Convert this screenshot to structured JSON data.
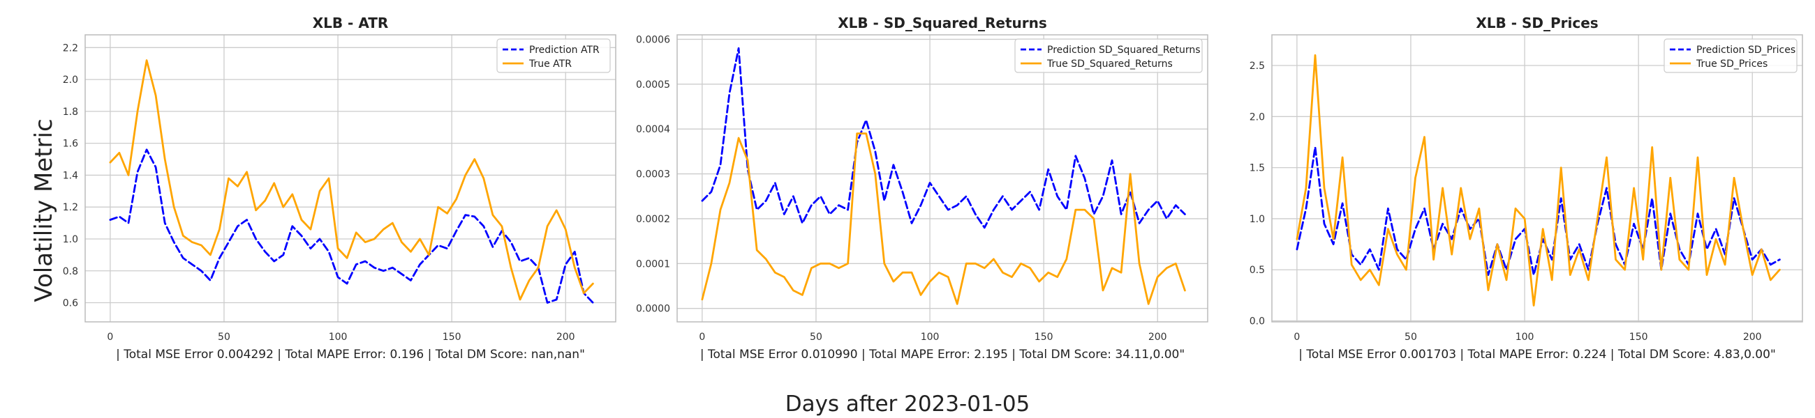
{
  "figure": {
    "ylabel": "Volatility Metric",
    "xlabel": "Days after 2023-01-05"
  },
  "colors": {
    "prediction": "#0000ff",
    "true": "#ffa500",
    "grid": "#cccccc",
    "frame": "#bbbbbb"
  },
  "chart_data": [
    {
      "type": "line",
      "title": "XLB - ATR",
      "xlabel": "| Total MSE Error 0.004292 | Total MAPE Error: 0.196 | Total DM Score: nan,nan\"",
      "ylabel": "Volatility Metric",
      "xlim": [
        -11,
        222
      ],
      "ylim": [
        0.48,
        2.28
      ],
      "xticks": [
        0,
        50,
        100,
        150,
        200
      ],
      "yticks": [
        0.6,
        0.8,
        1.0,
        1.2,
        1.4,
        1.6,
        1.8,
        2.0,
        2.2
      ],
      "ytick_labels": [
        "0.6",
        "0.8",
        "1.0",
        "1.2",
        "1.4",
        "1.6",
        "1.8",
        "2.0",
        "2.2"
      ],
      "grid": true,
      "legend_position": "top-right",
      "x_points": [
        0,
        4,
        8,
        12,
        16,
        20,
        24,
        28,
        32,
        36,
        40,
        44,
        48,
        52,
        56,
        60,
        64,
        68,
        72,
        76,
        80,
        84,
        88,
        92,
        96,
        100,
        104,
        108,
        112,
        116,
        120,
        124,
        128,
        132,
        136,
        140,
        144,
        148,
        152,
        156,
        160,
        164,
        168,
        172,
        176,
        180,
        184,
        188,
        192,
        196,
        200,
        204,
        208,
        212
      ],
      "series": [
        {
          "name": "Prediction ATR",
          "style": "dashed",
          "values": [
            1.12,
            1.14,
            1.1,
            1.42,
            1.56,
            1.45,
            1.1,
            0.98,
            0.88,
            0.84,
            0.8,
            0.74,
            0.88,
            0.98,
            1.08,
            1.12,
            1.0,
            0.92,
            0.86,
            0.9,
            1.08,
            1.02,
            0.94,
            1.0,
            0.92,
            0.76,
            0.72,
            0.84,
            0.86,
            0.82,
            0.8,
            0.82,
            0.78,
            0.74,
            0.84,
            0.9,
            0.96,
            0.94,
            1.05,
            1.15,
            1.14,
            1.08,
            0.95,
            1.05,
            0.98,
            0.86,
            0.88,
            0.82,
            0.6,
            0.62,
            0.84,
            0.92,
            0.66,
            0.6
          ]
        },
        {
          "name": "True ATR",
          "style": "solid",
          "values": [
            1.48,
            1.54,
            1.4,
            1.8,
            2.12,
            1.9,
            1.5,
            1.2,
            1.02,
            0.98,
            0.96,
            0.9,
            1.06,
            1.38,
            1.33,
            1.42,
            1.18,
            1.24,
            1.35,
            1.2,
            1.28,
            1.12,
            1.06,
            1.3,
            1.38,
            0.94,
            0.88,
            1.04,
            0.98,
            1.0,
            1.06,
            1.1,
            0.98,
            0.92,
            1.0,
            0.9,
            1.2,
            1.16,
            1.25,
            1.4,
            1.5,
            1.38,
            1.15,
            1.08,
            0.82,
            0.62,
            0.74,
            0.82,
            1.08,
            1.18,
            1.06,
            0.82,
            0.66,
            0.72
          ]
        }
      ]
    },
    {
      "type": "line",
      "title": "XLB - SD_Squared_Returns",
      "xlabel": "| Total MSE Error 0.010990 | Total MAPE Error: 2.195 | Total DM Score: 34.11,0.00\"",
      "xlim": [
        -11,
        222
      ],
      "ylim": [
        -3e-05,
        0.00061
      ],
      "xticks": [
        0,
        50,
        100,
        150,
        200
      ],
      "yticks": [
        0.0,
        0.0001,
        0.0002,
        0.0003,
        0.0004,
        0.0005,
        0.0006
      ],
      "ytick_labels": [
        "0.0000",
        "0.0001",
        "0.0002",
        "0.0003",
        "0.0004",
        "0.0005",
        "0.0006"
      ],
      "grid": true,
      "legend_position": "top-right",
      "x_points": [
        0,
        4,
        8,
        12,
        16,
        20,
        24,
        28,
        32,
        36,
        40,
        44,
        48,
        52,
        56,
        60,
        64,
        68,
        72,
        76,
        80,
        84,
        88,
        92,
        96,
        100,
        104,
        108,
        112,
        116,
        120,
        124,
        128,
        132,
        136,
        140,
        144,
        148,
        152,
        156,
        160,
        164,
        168,
        172,
        176,
        180,
        184,
        188,
        192,
        196,
        200,
        204,
        208,
        212
      ],
      "series": [
        {
          "name": "Prediction SD_Squared_Returns",
          "style": "dashed",
          "values": [
            0.00024,
            0.00026,
            0.00032,
            0.00048,
            0.00058,
            0.00031,
            0.00022,
            0.00024,
            0.00028,
            0.00021,
            0.00025,
            0.00019,
            0.00023,
            0.00025,
            0.00021,
            0.00023,
            0.00022,
            0.00037,
            0.00042,
            0.00035,
            0.00024,
            0.00032,
            0.00026,
            0.00019,
            0.00023,
            0.00028,
            0.00025,
            0.00022,
            0.00023,
            0.00025,
            0.00021,
            0.00018,
            0.00022,
            0.00025,
            0.00022,
            0.00024,
            0.00026,
            0.00022,
            0.00031,
            0.00025,
            0.00022,
            0.00034,
            0.00029,
            0.00021,
            0.00025,
            0.00033,
            0.00021,
            0.00026,
            0.00019,
            0.00022,
            0.00024,
            0.0002,
            0.00023,
            0.00021
          ]
        },
        {
          "name": "True SD_Squared_Returns",
          "style": "solid",
          "values": [
            2e-05,
            0.0001,
            0.00022,
            0.00028,
            0.00038,
            0.00033,
            0.00013,
            0.00011,
            8e-05,
            7e-05,
            4e-05,
            3e-05,
            9e-05,
            0.0001,
            0.0001,
            9e-05,
            0.0001,
            0.00039,
            0.00039,
            0.0003,
            0.0001,
            6e-05,
            8e-05,
            8e-05,
            3e-05,
            6e-05,
            8e-05,
            7e-05,
            1e-05,
            0.0001,
            0.0001,
            9e-05,
            0.00011,
            8e-05,
            7e-05,
            0.0001,
            9e-05,
            6e-05,
            8e-05,
            7e-05,
            0.00011,
            0.00022,
            0.00022,
            0.0002,
            4e-05,
            9e-05,
            8e-05,
            0.0003,
            0.0001,
            1e-05,
            7e-05,
            9e-05,
            0.0001,
            4e-05
          ]
        }
      ]
    },
    {
      "type": "line",
      "title": "XLB - SD_Prices",
      "xlabel": "| Total MSE Error 0.001703 | Total MAPE Error: 0.224 | Total DM Score: 4.83,0.00\"",
      "xlim": [
        -11,
        222
      ],
      "ylim": [
        -0.01,
        2.8
      ],
      "xticks": [
        0,
        50,
        100,
        150,
        200
      ],
      "yticks": [
        0.0,
        0.5,
        1.0,
        1.5,
        2.0,
        2.5
      ],
      "ytick_labels": [
        "0.0",
        "0.5",
        "1.0",
        "1.5",
        "2.0",
        "2.5"
      ],
      "grid": true,
      "legend_position": "top-right",
      "x_points": [
        0,
        4,
        8,
        12,
        16,
        20,
        24,
        28,
        32,
        36,
        40,
        44,
        48,
        52,
        56,
        60,
        64,
        68,
        72,
        76,
        80,
        84,
        88,
        92,
        96,
        100,
        104,
        108,
        112,
        116,
        120,
        124,
        128,
        132,
        136,
        140,
        144,
        148,
        152,
        156,
        160,
        164,
        168,
        172,
        176,
        180,
        184,
        188,
        192,
        196,
        200,
        204,
        208,
        212
      ],
      "series": [
        {
          "name": "Prediction SD_Prices",
          "style": "dashed",
          "values": [
            0.7,
            1.1,
            1.7,
            0.95,
            0.75,
            1.15,
            0.65,
            0.55,
            0.7,
            0.5,
            1.1,
            0.7,
            0.6,
            0.9,
            1.1,
            0.7,
            0.95,
            0.8,
            1.1,
            0.9,
            1.0,
            0.45,
            0.75,
            0.5,
            0.8,
            0.9,
            0.45,
            0.8,
            0.6,
            1.2,
            0.6,
            0.75,
            0.5,
            0.95,
            1.3,
            0.75,
            0.55,
            0.95,
            0.7,
            1.2,
            0.5,
            1.05,
            0.7,
            0.55,
            1.05,
            0.7,
            0.9,
            0.65,
            1.2,
            0.9,
            0.6,
            0.7,
            0.55,
            0.6
          ]
        },
        {
          "name": "True SD_Prices",
          "style": "solid",
          "values": [
            0.8,
            1.3,
            2.6,
            1.3,
            0.8,
            1.6,
            0.55,
            0.4,
            0.5,
            0.35,
            0.9,
            0.65,
            0.5,
            1.4,
            1.8,
            0.6,
            1.3,
            0.65,
            1.3,
            0.8,
            1.1,
            0.3,
            0.75,
            0.4,
            1.1,
            1.0,
            0.15,
            0.9,
            0.4,
            1.5,
            0.45,
            0.7,
            0.4,
            1.0,
            1.6,
            0.6,
            0.5,
            1.3,
            0.6,
            1.7,
            0.5,
            1.4,
            0.6,
            0.5,
            1.6,
            0.45,
            0.8,
            0.55,
            1.4,
            0.9,
            0.45,
            0.7,
            0.4,
            0.5
          ]
        }
      ]
    }
  ]
}
